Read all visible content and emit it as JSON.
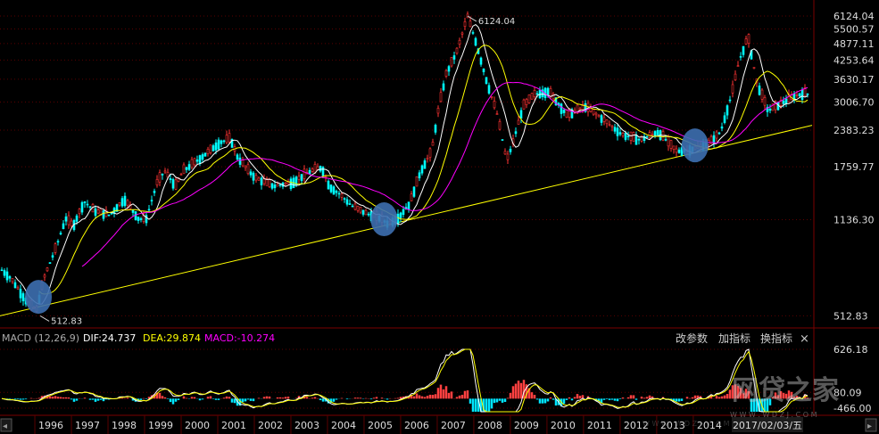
{
  "chart_data": [
    {
      "type": "candlestick",
      "title": "",
      "y_scale": "log",
      "ylim": [
        485,
        6400
      ],
      "y_ticks": [
        "6124.04",
        "5500.57",
        "4877.11",
        "4253.64",
        "3630.17",
        "3006.70",
        "2383.23",
        "1759.77",
        "1136.30",
        "512.83"
      ],
      "annotations": [
        {
          "text": "6124.04",
          "x": 2007.78,
          "y": 6124.04
        },
        {
          "text": "512.83",
          "x": 1996.1,
          "y": 512.83
        }
      ],
      "support_line": {
        "from": {
          "x": 1995.0,
          "y": 512.83
        },
        "to": {
          "x": 2017.2,
          "y": 2480
        }
      },
      "highlight_circles": [
        {
          "x": 1996.05,
          "y": 600
        },
        {
          "x": 2005.5,
          "y": 1140
        },
        {
          "x": 2014.0,
          "y": 2100
        }
      ],
      "price_series": {
        "name": "",
        "x": [
          1995.0,
          1995.3,
          1995.5,
          1995.8,
          1996.0,
          1996.2,
          1996.5,
          1996.8,
          1997.0,
          1997.3,
          1997.6,
          1998.0,
          1998.4,
          1998.8,
          1999.0,
          1999.3,
          1999.5,
          1999.8,
          2000.0,
          2000.5,
          2001.0,
          2001.3,
          2001.5,
          2001.8,
          2002.0,
          2002.5,
          2003.0,
          2003.5,
          2003.8,
          2004.0,
          2004.3,
          2004.6,
          2005.0,
          2005.4,
          2005.6,
          2005.9,
          2006.2,
          2006.5,
          2006.8,
          2007.0,
          2007.2,
          2007.5,
          2007.78,
          2008.0,
          2008.3,
          2008.6,
          2008.85,
          2009.0,
          2009.3,
          2009.6,
          2010.0,
          2010.5,
          2011.0,
          2011.5,
          2012.0,
          2012.5,
          2013.0,
          2013.5,
          2014.0,
          2014.4,
          2014.7,
          2015.0,
          2015.2,
          2015.45,
          2015.7,
          2016.0,
          2016.3,
          2016.7,
          2017.0,
          2017.1
        ],
        "values": [
          760,
          700,
          640,
          560,
          540,
          700,
          880,
          1150,
          1080,
          1320,
          1220,
          1180,
          1350,
          1140,
          1150,
          1550,
          1700,
          1500,
          1700,
          1900,
          2150,
          2230,
          1900,
          1700,
          1600,
          1500,
          1550,
          1700,
          1750,
          1500,
          1400,
          1280,
          1200,
          1150,
          1100,
          1160,
          1300,
          1700,
          2000,
          2900,
          3800,
          4600,
          6124,
          5000,
          3600,
          2700,
          1850,
          2100,
          2900,
          3200,
          3300,
          2700,
          2900,
          2600,
          2300,
          2200,
          2350,
          2000,
          2050,
          2150,
          2350,
          3200,
          4200,
          5170,
          3500,
          2800,
          2950,
          3150,
          3250,
          3200
        ]
      },
      "moving_averages": [
        {
          "name": "",
          "color": "#ffffff",
          "period": "short"
        },
        {
          "name": "",
          "color": "#ffff00",
          "period": "medium"
        },
        {
          "name": "",
          "color": "#ff00ff",
          "period": "long"
        }
      ],
      "colors": {
        "up": "#ff3333",
        "down": "#00ffff",
        "support": "#ffff00",
        "circle": "#3d6fb0"
      }
    },
    {
      "type": "macd",
      "ylim": [
        -166,
        626.18
      ],
      "y_ticks": [
        "626.18",
        "80.09",
        "-466.00"
      ],
      "legend": {
        "name": "MACD (12,26,9)",
        "dif": "DIF:24.737",
        "dea": "DEA:29.874",
        "macd": "MACD:-10.274"
      },
      "colors": {
        "dif": "#ffffff",
        "dea": "#ffff00",
        "macd": "#ff00ff",
        "bar_up": "#ff4040",
        "bar_down": "#00e5ff"
      }
    }
  ],
  "x_axis": {
    "years": [
      "1996",
      "1997",
      "1998",
      "1999",
      "2000",
      "2001",
      "2002",
      "2003",
      "2004",
      "2005",
      "2006",
      "2007",
      "2008",
      "2009",
      "2010",
      "2011",
      "2012",
      "2013",
      "2014"
    ],
    "date_label": "2017/02/03/五",
    "watermark": "网贷之家",
    "watermark_small": "W W W . W D Z J . C O M",
    "faint_overlay": "W W W . W D Z J . C O M"
  },
  "toolbar": {
    "change_params": "改参数",
    "add_indicator": "加指标",
    "swap_indicator": "换指标",
    "close": "×"
  },
  "scroll": {
    "left": "◂",
    "right": "▸"
  }
}
